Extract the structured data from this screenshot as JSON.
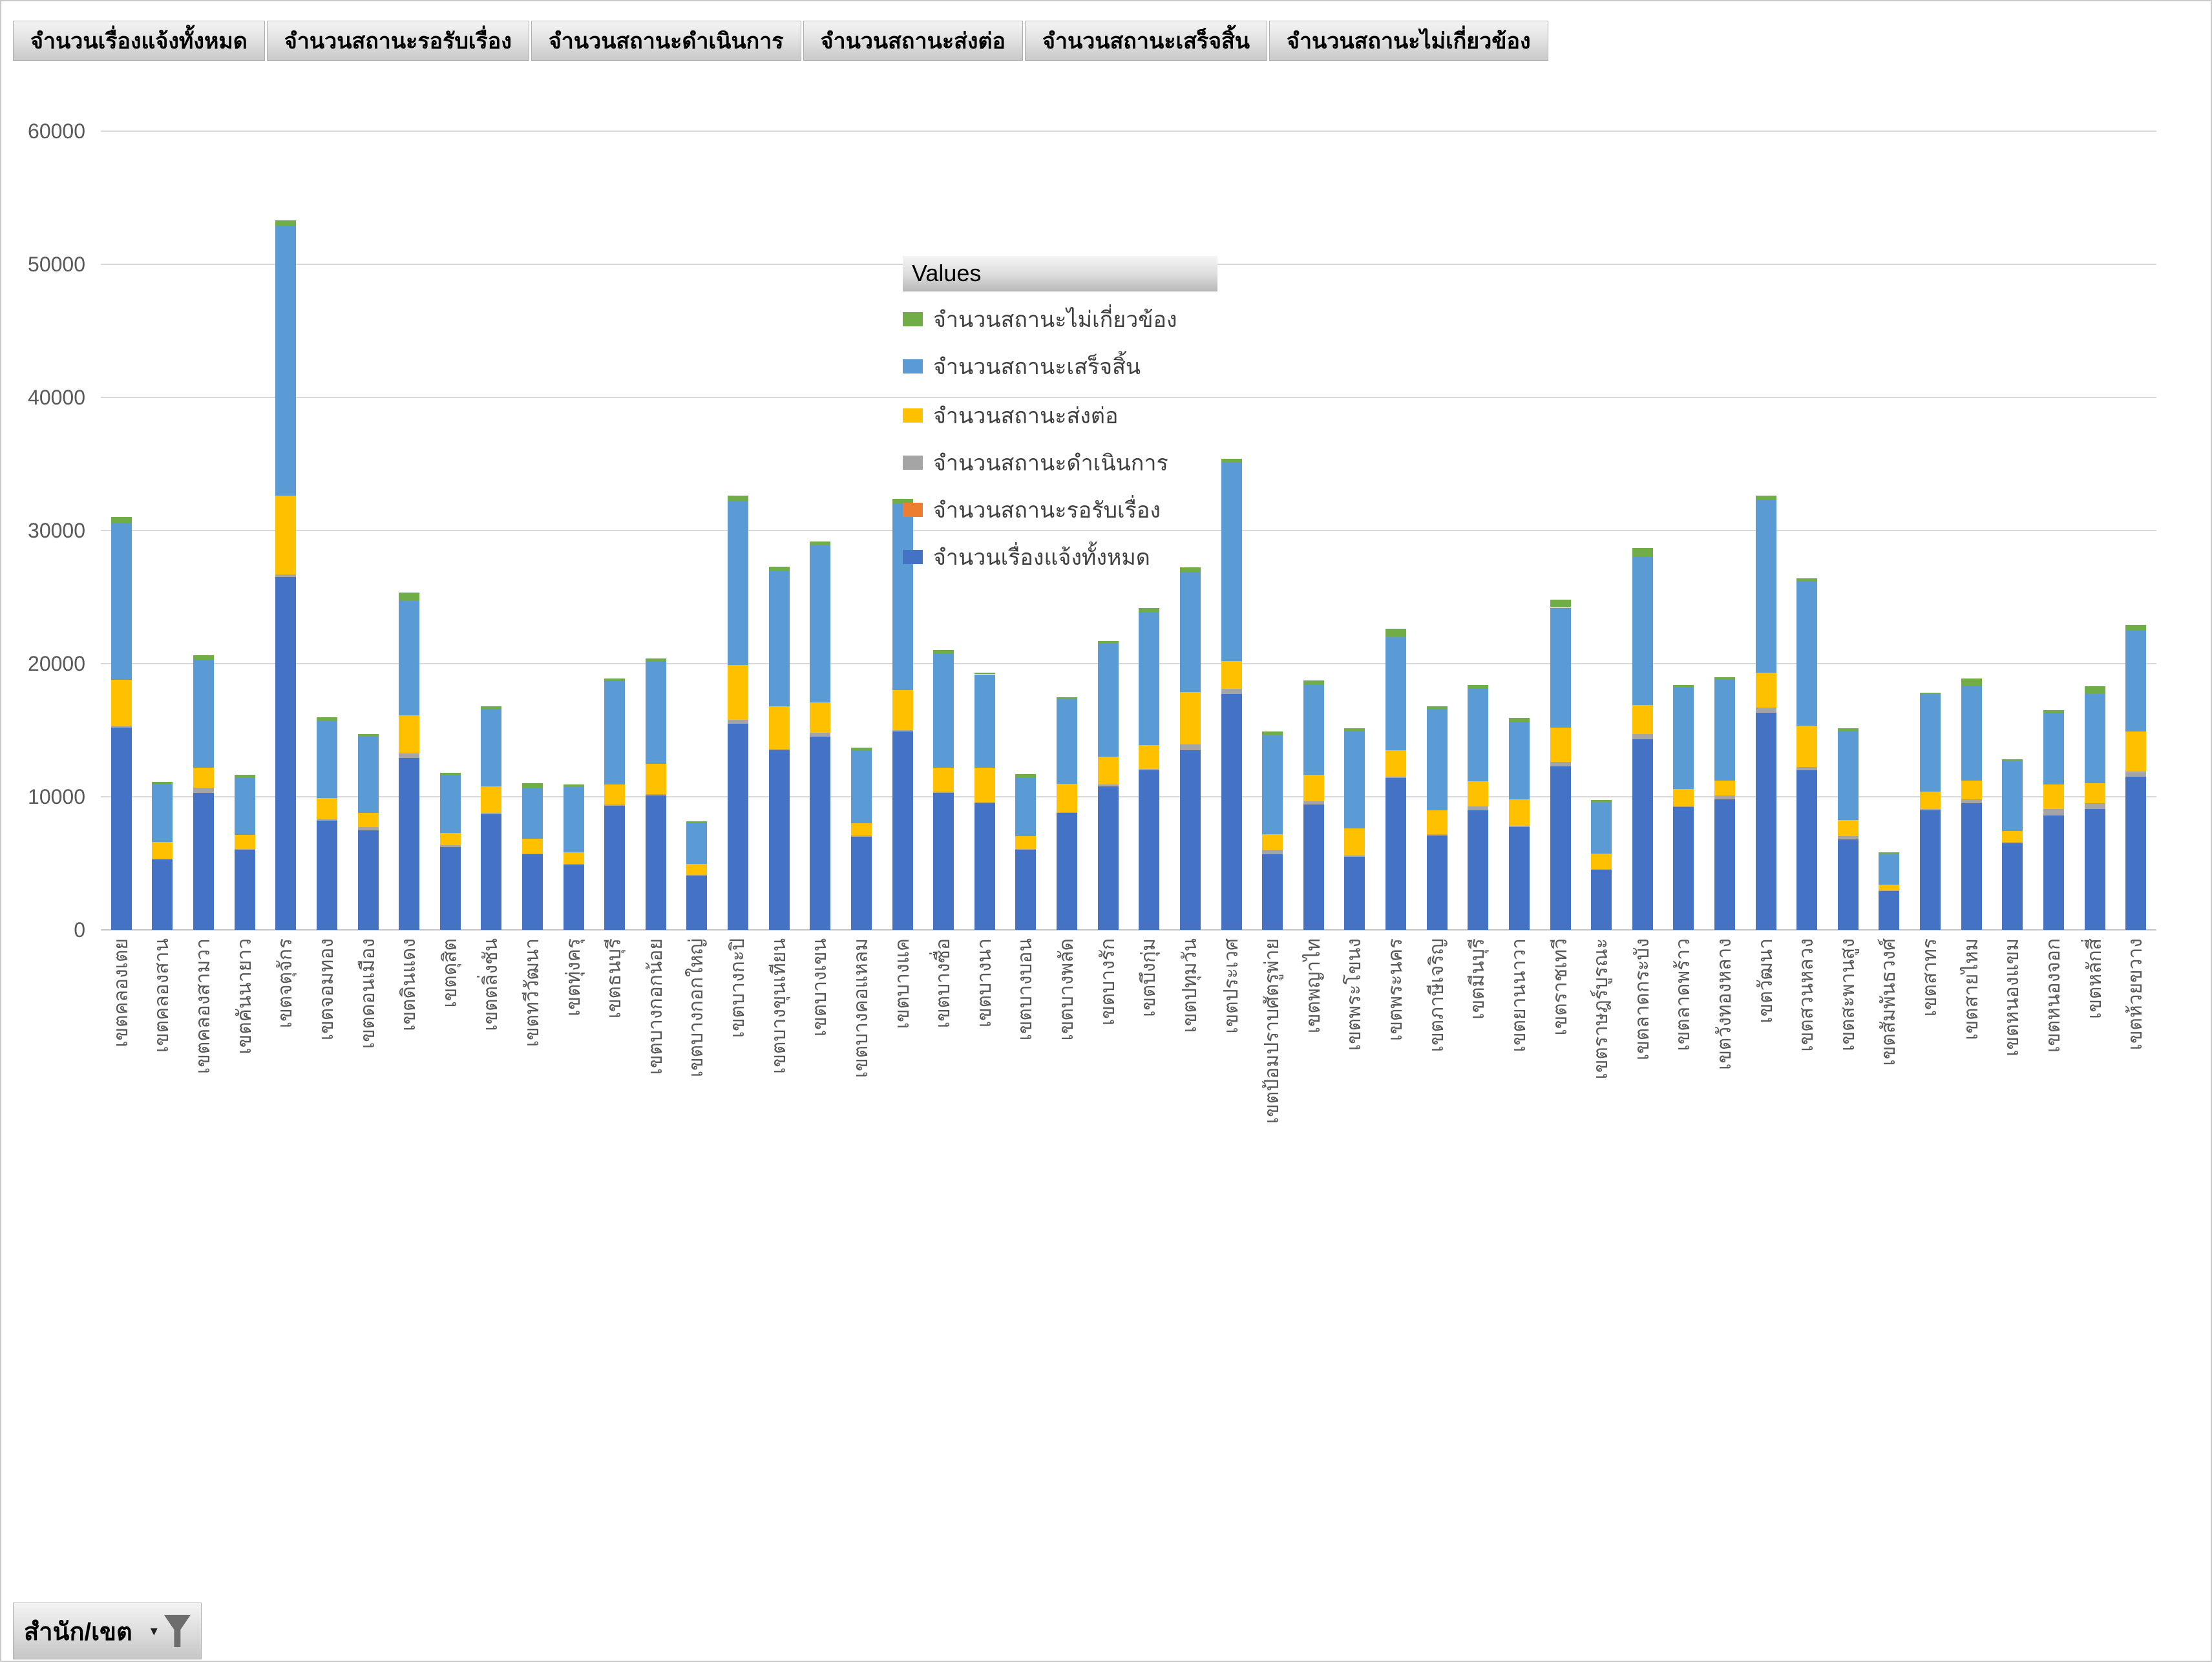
{
  "field_buttons": [
    "จำนวนเรื่องแจ้งทั้งหมด",
    "จำนวนสถานะรอรับเรื่อง",
    "จำนวนสถานะดำเนินการ",
    "จำนวนสถานะส่งต่อ",
    "จำนวนสถานะเสร็จสิ้น",
    "จำนวนสถานะไม่เกี่ยวข้อง"
  ],
  "legend": {
    "title": "Values",
    "items": [
      {
        "label": "จำนวนสถานะไม่เกี่ยวข้อง",
        "color": "#70AD47"
      },
      {
        "label": "จำนวนสถานะเสร็จสิ้น",
        "color": "#5B9BD5"
      },
      {
        "label": "จำนวนสถานะส่งต่อ",
        "color": "#FFC000"
      },
      {
        "label": "จำนวนสถานะดำเนินการ",
        "color": "#A5A5A5"
      },
      {
        "label": "จำนวนสถานะรอรับเรื่อง",
        "color": "#ED7D31"
      },
      {
        "label": "จำนวนเรื่องแจ้งทั้งหมด",
        "color": "#4472C4"
      }
    ]
  },
  "filter_button": {
    "label": "สำนัก/เขต",
    "dropdown_glyph": "▾"
  },
  "colors": {
    "grid": "#D9D9D9",
    "axis": "#C6C6C6",
    "tick_text": "#595959",
    "legend_text": "#404040"
  },
  "chart_data": {
    "type": "bar",
    "stacked": true,
    "grid": true,
    "legend_position": "floating-center-right",
    "ylim": [
      0,
      60000
    ],
    "ytick_step": 10000,
    "yticks": [
      "0",
      "10000",
      "20000",
      "30000",
      "40000",
      "50000",
      "60000"
    ],
    "xlabel": "",
    "ylabel": "",
    "categories": [
      "เขตคลองเตย",
      "เขตคลองสาน",
      "เขตคลองสามวา",
      "เขตคันนายาว",
      "เขตจตุจักร",
      "เขตจอมทอง",
      "เขตดอนเมือง",
      "เขตดินแดง",
      "เขตดุสิต",
      "เขตตลิ่งชัน",
      "เขตทวีวัฒนา",
      "เขตทุ่งครุ",
      "เขตธนบุรี",
      "เขตบางกอกน้อย",
      "เขตบางกอกใหญ่",
      "เขตบางกะปิ",
      "เขตบางขุนเทียน",
      "เขตบางเขน",
      "เขตบางคอแหลม",
      "เขตบางแค",
      "เขตบางซื่อ",
      "เขตบางนา",
      "เขตบางบอน",
      "เขตบางพลัด",
      "เขตบางรัก",
      "เขตบึงกุ่ม",
      "เขตปทุมวัน",
      "เขตประเวศ",
      "เขตป้อมปราบศัตรูพ่าย",
      "เขตพญาไท",
      "เขตพระโขนง",
      "เขตพระนคร",
      "เขตภาษีเจริญ",
      "เขตมีนบุรี",
      "เขตยานนาวา",
      "เขตราชเทวี",
      "เขตราษฎร์บูรณะ",
      "เขตลาดกระบัง",
      "เขตลาดพร้าว",
      "เขตวังทองหลาง",
      "เขตวัฒนา",
      "เขตสวนหลวง",
      "เขตสะพานสูง",
      "เขตสัมพันธวงศ์",
      "เขตสาทร",
      "เขตสายไหม",
      "เขตหนองแขม",
      "เขตหนองจอก",
      "เขตหลักสี่",
      "เขตห้วยขวาง"
    ],
    "series": [
      {
        "name": "จำนวนเรื่องแจ้งทั้งหมด",
        "color": "#4472C4",
        "values": [
          15200,
          5300,
          10300,
          6000,
          26500,
          8200,
          7500,
          12900,
          6200,
          8700,
          5700,
          4900,
          9300,
          10100,
          4100,
          15500,
          13500,
          14500,
          7000,
          14900,
          10300,
          9500,
          6000,
          8800,
          10800,
          12000,
          13500,
          17700,
          5700,
          9400,
          5500,
          11400,
          7100,
          9000,
          7700,
          12300,
          4500,
          14300,
          9200,
          9800,
          16300,
          12000,
          6800,
          2900,
          9000,
          9500,
          6500,
          8600,
          9100,
          11500
        ]
      },
      {
        "name": "จำนวนสถานะรอรับเรื่อง",
        "color": "#ED7D31",
        "values": [
          0,
          0,
          0,
          0,
          0,
          0,
          0,
          0,
          0,
          0,
          0,
          0,
          0,
          0,
          0,
          0,
          0,
          0,
          0,
          0,
          0,
          0,
          0,
          0,
          0,
          0,
          0,
          0,
          0,
          0,
          0,
          0,
          0,
          0,
          0,
          0,
          0,
          0,
          0,
          0,
          0,
          0,
          0,
          0,
          0,
          0,
          0,
          0,
          0,
          0
        ]
      },
      {
        "name": "จำนวนสถานะดำเนินการ",
        "color": "#A5A5A5",
        "values": [
          100,
          50,
          400,
          50,
          200,
          100,
          200,
          350,
          150,
          100,
          50,
          50,
          100,
          100,
          50,
          300,
          100,
          300,
          100,
          100,
          100,
          100,
          50,
          50,
          100,
          100,
          450,
          400,
          300,
          250,
          100,
          100,
          100,
          250,
          100,
          300,
          50,
          400,
          100,
          300,
          400,
          250,
          250,
          50,
          100,
          300,
          100,
          500,
          400,
          400
        ]
      },
      {
        "name": "จำนวนสถานะส่งต่อ",
        "color": "#FFC000",
        "values": [
          3500,
          1250,
          1500,
          1100,
          5900,
          1600,
          1100,
          2850,
          950,
          2000,
          1100,
          900,
          1500,
          2300,
          800,
          4100,
          3200,
          2300,
          900,
          3000,
          1800,
          2600,
          1000,
          2100,
          2100,
          1800,
          3900,
          2100,
          1200,
          2000,
          2000,
          2000,
          1800,
          1900,
          2000,
          2600,
          1200,
          2200,
          1300,
          1100,
          2600,
          3100,
          1200,
          450,
          1300,
          1400,
          850,
          1800,
          1500,
          3000
        ]
      },
      {
        "name": "จำนวนสถานะเสร็จสิ้น",
        "color": "#5B9BD5",
        "values": [
          11800,
          4300,
          8100,
          4250,
          20300,
          5800,
          5700,
          8600,
          4300,
          5800,
          3850,
          4900,
          7800,
          7700,
          3100,
          12300,
          10200,
          11800,
          5500,
          14000,
          8600,
          7000,
          4400,
          6400,
          8500,
          10000,
          9000,
          14900,
          7400,
          6800,
          7300,
          8500,
          7600,
          7000,
          5800,
          9000,
          3800,
          11100,
          7600,
          7600,
          13000,
          10800,
          6700,
          2300,
          7300,
          7100,
          5200,
          5400,
          6700,
          7600
        ]
      },
      {
        "name": "จำนวนสถานะไม่เกี่ยวข้อง",
        "color": "#70AD47",
        "values": [
          400,
          200,
          350,
          250,
          400,
          250,
          200,
          650,
          200,
          200,
          300,
          150,
          200,
          200,
          100,
          400,
          300,
          300,
          200,
          400,
          200,
          100,
          250,
          150,
          200,
          300,
          400,
          300,
          300,
          300,
          250,
          600,
          200,
          250,
          300,
          600,
          200,
          700,
          200,
          200,
          300,
          250,
          200,
          150,
          100,
          600,
          150,
          200,
          600,
          400
        ]
      }
    ]
  }
}
